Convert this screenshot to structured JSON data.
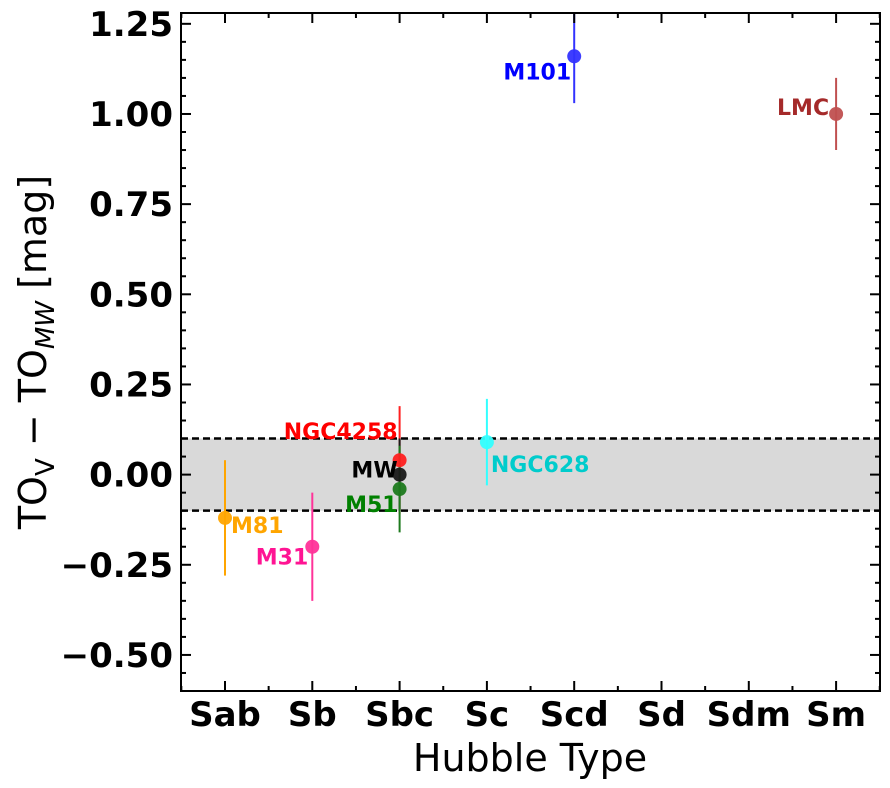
{
  "chart_data": {
    "type": "scatter",
    "xlabel": "Hubble Type",
    "ylabel": "TO_V − TO_MW [mag]",
    "categories": [
      "Sab",
      "Sb",
      "Sbc",
      "Sc",
      "Scd",
      "Sd",
      "Sdm",
      "Sm"
    ],
    "ylim": [
      -0.6,
      1.28
    ],
    "yticks": [
      -0.5,
      -0.25,
      0.0,
      0.25,
      0.5,
      0.75,
      1.0,
      1.25
    ],
    "ytick_labels": [
      "−0.50",
      "−0.25",
      "0.00",
      "0.25",
      "0.50",
      "0.75",
      "1.00",
      "1.25"
    ],
    "band": {
      "ymin": -0.1,
      "ymax": 0.1,
      "color": "#d9d9d9"
    },
    "grid": false,
    "points": [
      {
        "name": "M81",
        "category": "Sab",
        "y": -0.12,
        "err": 0.16,
        "color": "#ffa500",
        "label_color": "#ffa500"
      },
      {
        "name": "M31",
        "category": "Sb",
        "y": -0.2,
        "err": 0.15,
        "color": "#ff3399",
        "label_color": "#ff1493"
      },
      {
        "name": "NGC4258",
        "category": "Sbc",
        "y": 0.04,
        "err": 0.15,
        "color": "#ff2020",
        "label_color": "#ff0000"
      },
      {
        "name": "MW",
        "category": "Sbc",
        "y": 0.0,
        "err": 0.1,
        "color": "#1a1a1a",
        "label_color": "#000000"
      },
      {
        "name": "M51",
        "category": "Sbc",
        "y": -0.04,
        "err": 0.12,
        "color": "#1e7a1e",
        "label_color": "#008000"
      },
      {
        "name": "NGC628",
        "category": "Sc",
        "y": 0.09,
        "err": 0.12,
        "color": "#33ffff",
        "label_color": "#00cccc"
      },
      {
        "name": "M101",
        "category": "Scd",
        "y": 1.16,
        "err": 0.13,
        "color": "#3333ff",
        "label_color": "#0000ff"
      },
      {
        "name": "LMC",
        "category": "Sm",
        "y": 1.0,
        "err": 0.1,
        "color": "#c05050",
        "label_color": "#a52a2a"
      }
    ]
  }
}
